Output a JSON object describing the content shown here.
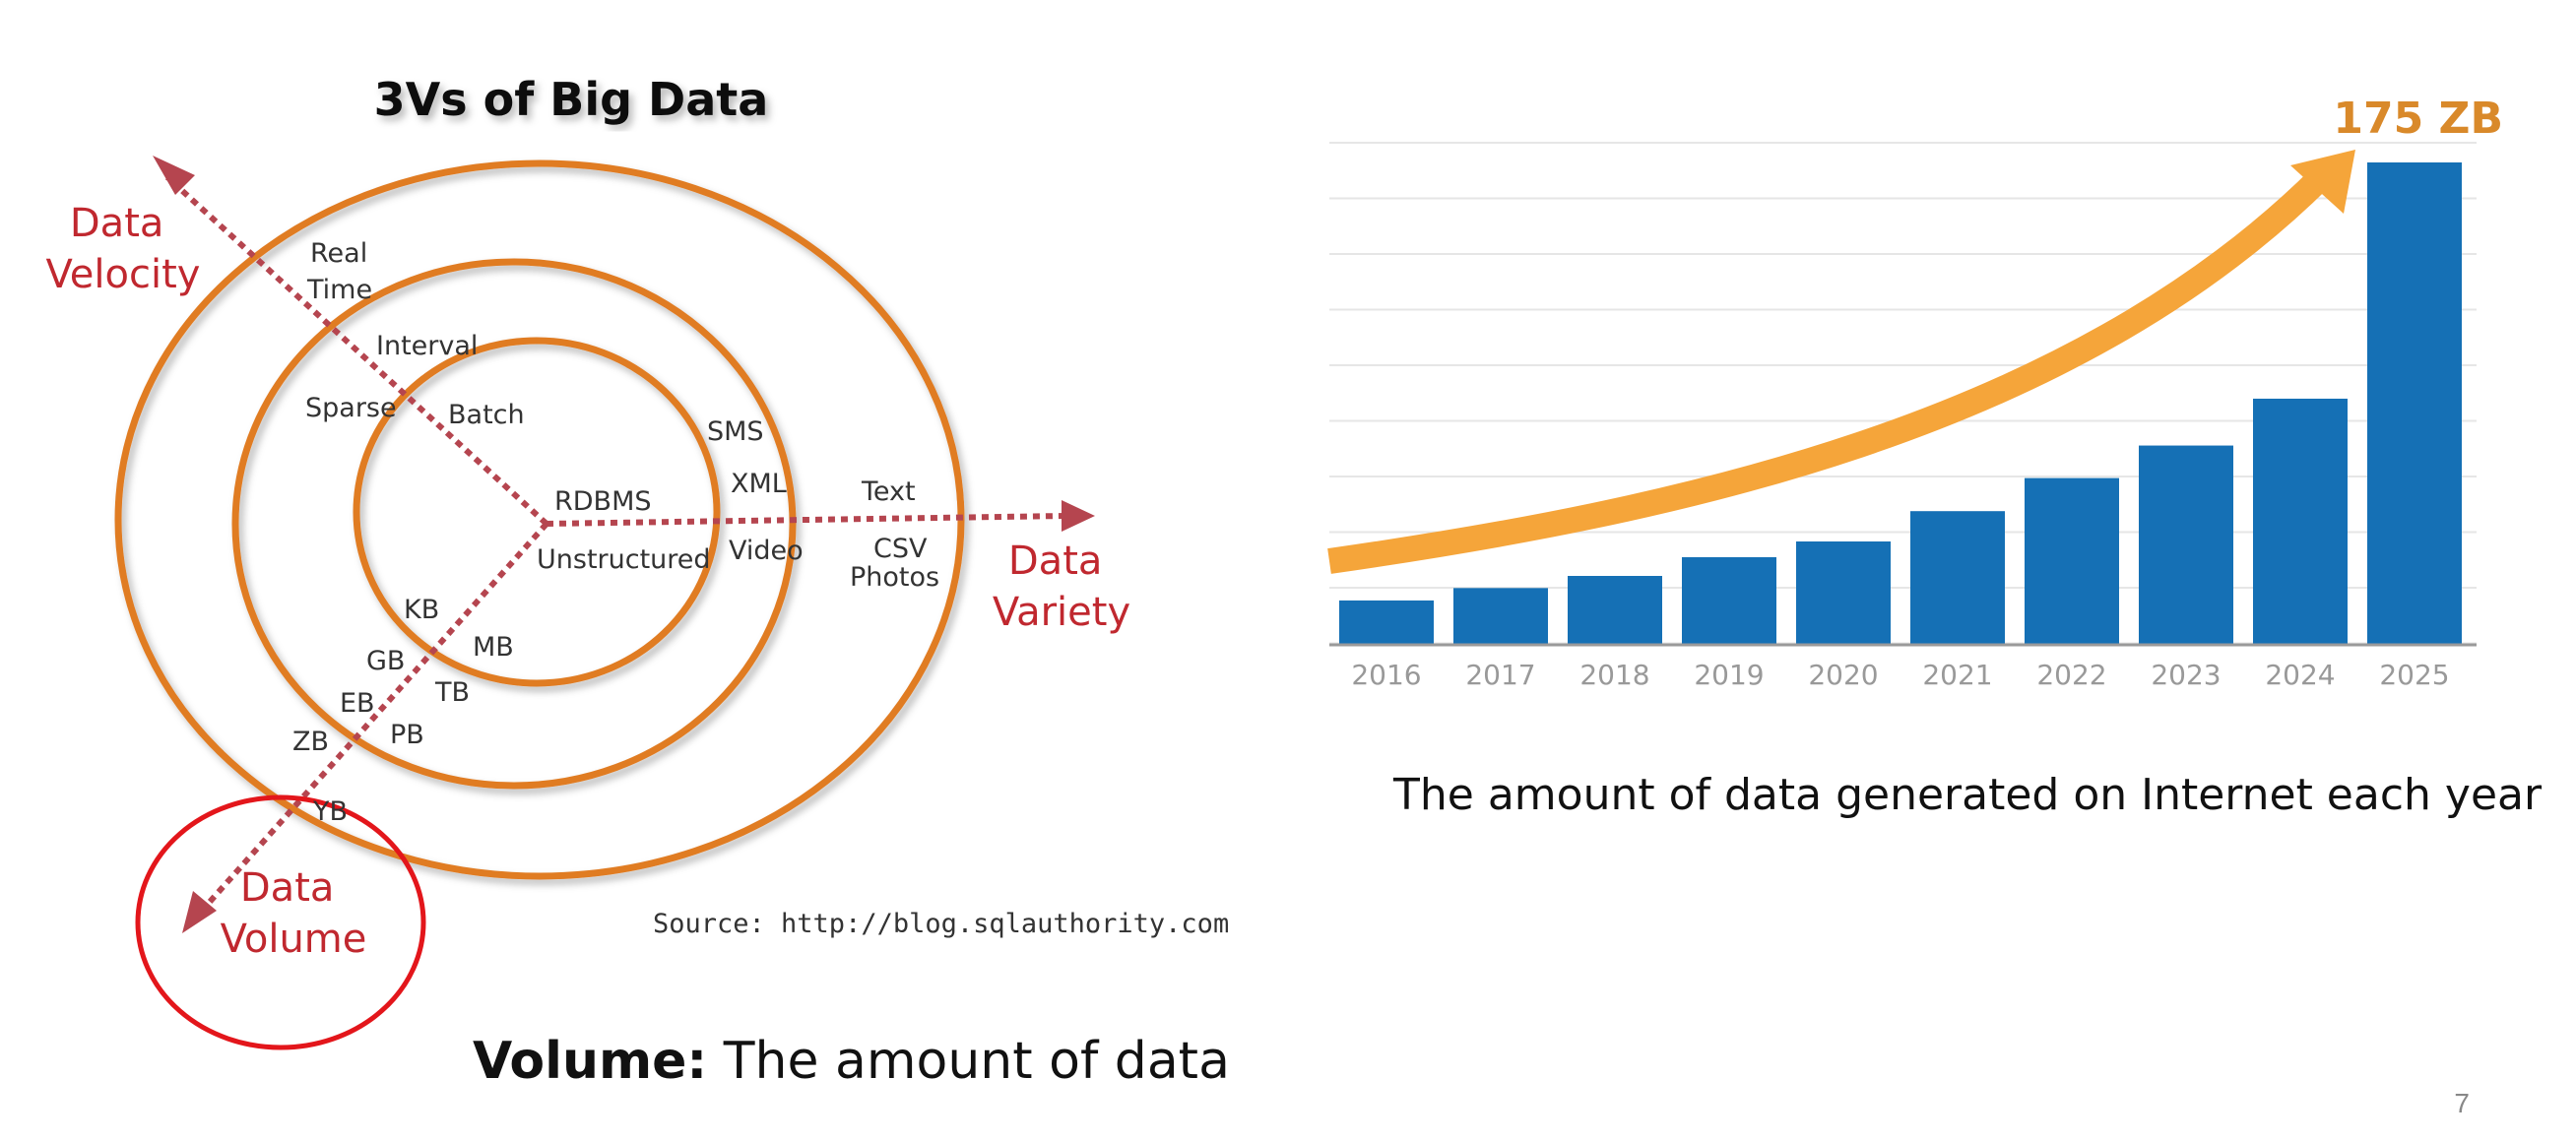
{
  "diagram": {
    "title": "3Vs of Big Data",
    "axes": {
      "velocity": [
        "Data",
        "Velocity"
      ],
      "variety": [
        "Data",
        "Variety"
      ],
      "volume": [
        "Data",
        "Volume"
      ]
    },
    "velocity_labels": {
      "real_time": [
        "Real",
        "Time"
      ],
      "interval": "Interval",
      "batch": "Batch"
    },
    "variety_labels": {
      "rdbms": "RDBMS",
      "sms": "SMS",
      "xml": "XML",
      "text": "Text",
      "video": "Video",
      "csv": "CSV",
      "photos": "Photos",
      "sparse": "Sparse",
      "unstructured": "Unstructured"
    },
    "volume_labels": {
      "kb": "KB",
      "mb": "MB",
      "gb": "GB",
      "tb": "TB",
      "eb": "EB",
      "pb": "PB",
      "zb": "ZB",
      "yb": "YB"
    },
    "source": "Source: http://blog.sqlauthority.com",
    "colors": {
      "ring": "#e07b24",
      "arrow": "#b5454f",
      "axis_label": "#c0282f",
      "highlight": "#e3161b"
    }
  },
  "volume_caption": {
    "bold": "Volume:",
    "text": " The amount of data"
  },
  "chart_caption": "The amount of data generated on Internet each year",
  "page_number": "7",
  "chart_data": {
    "type": "bar",
    "categories": [
      "2016",
      "2017",
      "2018",
      "2019",
      "2020",
      "2021",
      "2022",
      "2023",
      "2024",
      "2025"
    ],
    "values": [
      16.1,
      20.6,
      25,
      31.8,
      37.5,
      48.5,
      60.5,
      72.3,
      89.3,
      175
    ],
    "annotation": "175 ZB",
    "grid": true,
    "colors": {
      "bar": "#1570b5",
      "trend_arrow": "#f5a53a",
      "annotation": "#d9892a",
      "axis_text": "#999999"
    }
  }
}
